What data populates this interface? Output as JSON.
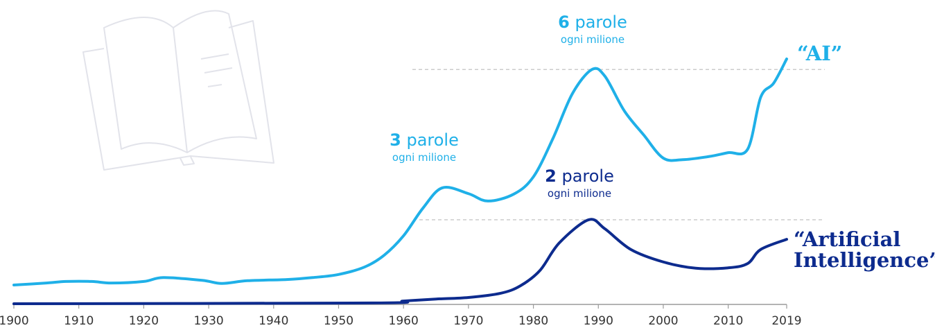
{
  "chart_data": {
    "type": "line",
    "xlim": [
      1900,
      2019
    ],
    "xticks": [
      1900,
      1910,
      1920,
      1930,
      1940,
      1950,
      1960,
      1970,
      1980,
      1990,
      2000,
      2010,
      2019
    ],
    "ylim": [
      0,
      6.5
    ],
    "series": [
      {
        "name": "“AI”",
        "color": "#1fb0e8",
        "x": [
          1900,
          1905,
          1908,
          1912,
          1915,
          1920,
          1923,
          1929,
          1932,
          1936,
          1942,
          1946,
          1950,
          1954,
          1957,
          1960,
          1963,
          1966,
          1970,
          1973,
          1977,
          1980,
          1983,
          1986,
          1989,
          1991,
          1994,
          1997,
          2000,
          2003,
          2007,
          2010,
          2013,
          2015,
          2017,
          2019
        ],
        "values": [
          0.48,
          0.53,
          0.57,
          0.57,
          0.53,
          0.57,
          0.67,
          0.6,
          0.52,
          0.59,
          0.62,
          0.67,
          0.75,
          0.94,
          1.24,
          1.74,
          2.45,
          2.97,
          2.82,
          2.63,
          2.81,
          3.25,
          4.23,
          5.38,
          6.0,
          5.83,
          4.94,
          4.32,
          3.73,
          3.69,
          3.77,
          3.87,
          3.96,
          5.29,
          5.65,
          6.27
        ]
      },
      {
        "name": "“Artificial Intelligence”",
        "color": "#0d2b8e",
        "x": [
          1900,
          1955,
          1960,
          1965,
          1970,
          1975,
          1978,
          1981,
          1984,
          1988.5,
          1991,
          1995,
          2000,
          2005,
          2010,
          2013,
          2015,
          2019
        ],
        "values": [
          0,
          0.02,
          0.07,
          0.12,
          0.16,
          0.27,
          0.46,
          0.85,
          1.56,
          2.15,
          1.92,
          1.39,
          1.07,
          0.91,
          0.92,
          1.03,
          1.39,
          1.65
        ]
      }
    ],
    "annotations": [
      {
        "number": 6,
        "text": "parole",
        "sub": "ogni milione"
      },
      {
        "number": 3,
        "text": "parole",
        "sub": "ogni milione"
      },
      {
        "number": 2,
        "text": "parole",
        "sub": "ogni milione"
      }
    ]
  }
}
